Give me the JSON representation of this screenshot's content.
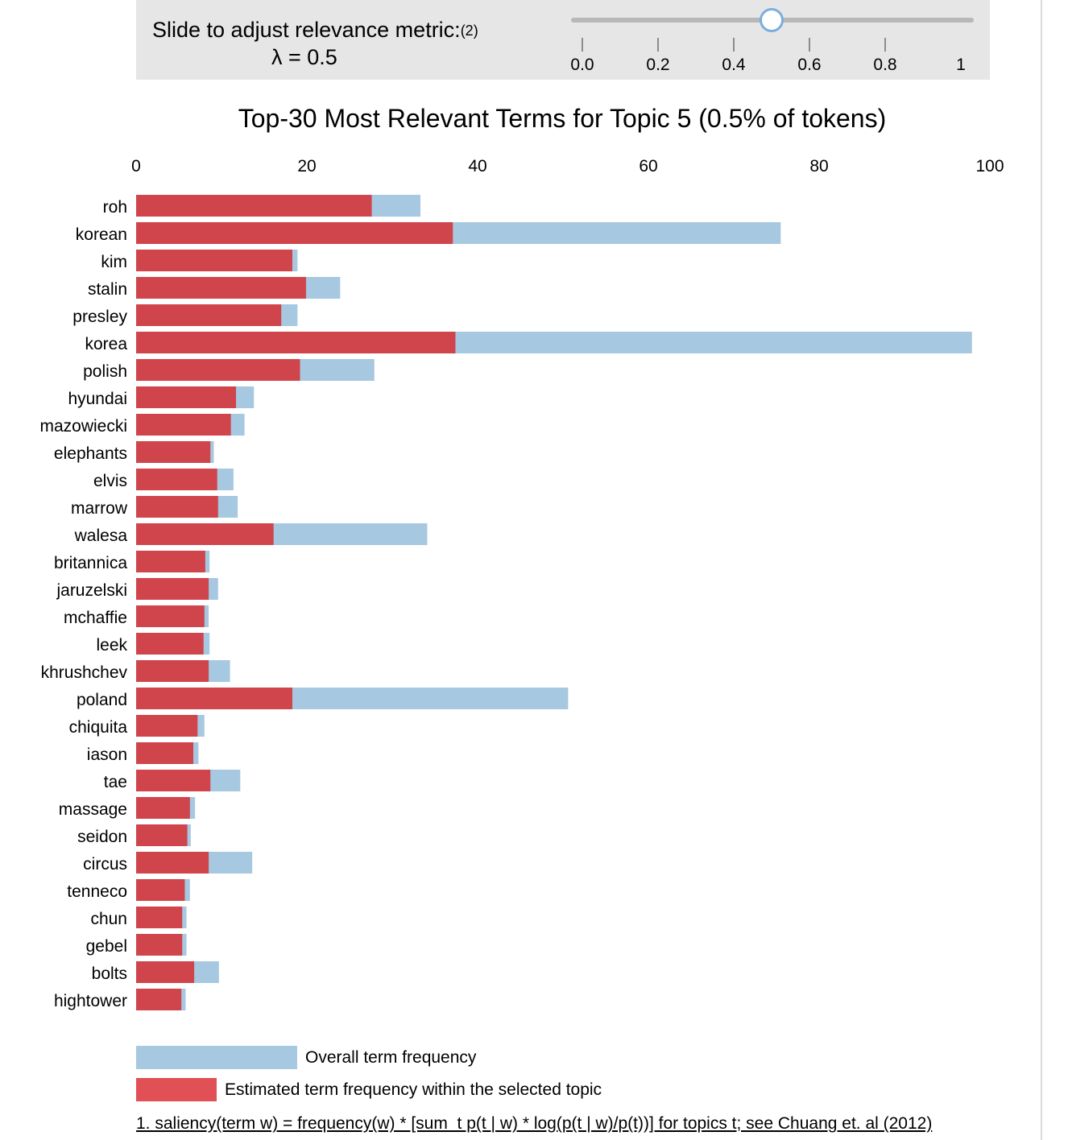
{
  "slider": {
    "title": "Slide to adjust relevance metric:",
    "footnote_marker": "(2)",
    "lambda_label": "λ = 0.5",
    "lambda_value": 0.5,
    "ticks": [
      "0.0",
      "0.2",
      "0.4",
      "0.6",
      "0.8",
      "1"
    ]
  },
  "footnote": "1. saliency(term w) = frequency(w) * [sum_t p(t | w) * log(p(t | w)/p(t))] for topics t; see Chuang et. al (2012)",
  "colors": {
    "overall": "#a6c8e0",
    "topic": "#d0454c",
    "legend_topic": "#e05055",
    "panel": "#e6e6e6"
  },
  "chart_data": {
    "type": "bar",
    "orientation": "horizontal",
    "title": "Top-30 Most Relevant Terms for Topic 5 (0.5% of tokens)",
    "xlim": [
      0,
      100
    ],
    "x_ticks": [
      "0",
      "20",
      "40",
      "60",
      "80",
      "100"
    ],
    "x_tick_values": [
      0,
      20,
      40,
      60,
      80,
      100
    ],
    "grid": false,
    "legend_position": "bottom",
    "categories": [
      "roh",
      "korean",
      "kim",
      "stalin",
      "presley",
      "korea",
      "polish",
      "hyundai",
      "mazowiecki",
      "elephants",
      "elvis",
      "marrow",
      "walesa",
      "britannica",
      "jaruzelski",
      "mchaffie",
      "leek",
      "khrushchev",
      "poland",
      "chiquita",
      "iason",
      "tae",
      "massage",
      "seidon",
      "circus",
      "tenneco",
      "chun",
      "gebel",
      "bolts",
      "hightower"
    ],
    "series": [
      {
        "name": "Overall term frequency",
        "values": [
          33.3,
          75.5,
          18.9,
          23.9,
          18.9,
          97.9,
          27.9,
          13.8,
          12.7,
          9.1,
          11.4,
          11.9,
          34.1,
          8.6,
          9.6,
          8.5,
          8.6,
          11.0,
          50.6,
          8.0,
          7.3,
          12.2,
          6.9,
          6.4,
          13.6,
          6.3,
          5.9,
          5.9,
          9.7,
          5.8
        ]
      },
      {
        "name": "Estimated term frequency within the selected topic",
        "values": [
          27.6,
          37.1,
          18.3,
          19.9,
          17.0,
          37.4,
          19.2,
          11.7,
          11.1,
          8.7,
          9.5,
          9.6,
          16.1,
          8.1,
          8.5,
          8.0,
          7.9,
          8.5,
          18.3,
          7.2,
          6.7,
          8.7,
          6.3,
          6.0,
          8.5,
          5.7,
          5.4,
          5.4,
          6.8,
          5.3
        ]
      }
    ]
  }
}
